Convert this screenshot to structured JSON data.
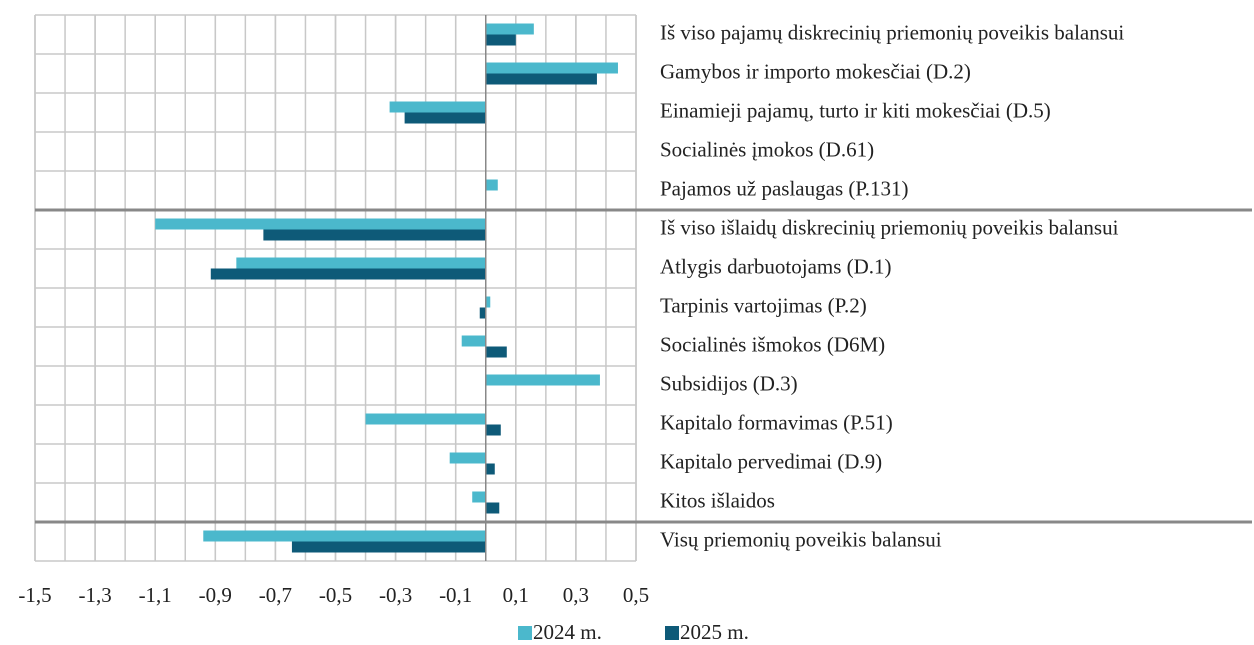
{
  "chart_data": {
    "type": "barh",
    "categories": [
      "Iš viso pajamų diskrecinių priemonių poveikis balansui",
      "Gamybos ir importo mokesčiai (D.2)",
      "Einamieji pajamų, turto ir kiti mokesčiai (D.5)",
      "Socialinės įmokos (D.61)",
      "Pajamos už paslaugas (P.131)",
      "Iš viso išlaidų diskrecinių priemonių poveikis balansui",
      "Atlygis darbuotojams (D.1)",
      "Tarpinis vartojimas (P.2)",
      "Socialinės išmokos (D6M)",
      "Subsidijos (D.3)",
      "Kapitalo formavimas (P.51)",
      "Kapitalo pervedimai (D.9)",
      "Kitos išlaidos",
      "Visų priemonių poveikis balansui"
    ],
    "series": [
      {
        "name": "2024 m.",
        "color": "#4bb8cc",
        "values": [
          0.16,
          0.44,
          -0.32,
          0,
          0.04,
          -1.1,
          -0.83,
          0.015,
          -0.08,
          0.38,
          -0.4,
          -0.12,
          -0.045,
          -0.94
        ]
      },
      {
        "name": "2025 m.",
        "color": "#0e5a78",
        "values": [
          0.1,
          0.37,
          -0.27,
          0,
          0,
          -0.74,
          -0.915,
          -0.02,
          0.07,
          0,
          0.05,
          0.03,
          0.045,
          -0.645
        ]
      }
    ],
    "xlim": [
      -1.5,
      0.5
    ],
    "xticks": [
      {
        "value": -1.5,
        "label": "-1,5"
      },
      {
        "value": -1.3,
        "label": "-1,3"
      },
      {
        "value": -1.1,
        "label": "-1,1"
      },
      {
        "value": -0.9,
        "label": "-0,9"
      },
      {
        "value": -0.7,
        "label": "-0,7"
      },
      {
        "value": -0.5,
        "label": "-0,5"
      },
      {
        "value": -0.3,
        "label": "-0,3"
      },
      {
        "value": -0.1,
        "label": "-0,1"
      },
      {
        "value": 0.1,
        "label": "0,1"
      },
      {
        "value": 0.3,
        "label": "0,3"
      },
      {
        "value": 0.5,
        "label": "0,5"
      }
    ],
    "grid": true,
    "legend": "bottom"
  }
}
